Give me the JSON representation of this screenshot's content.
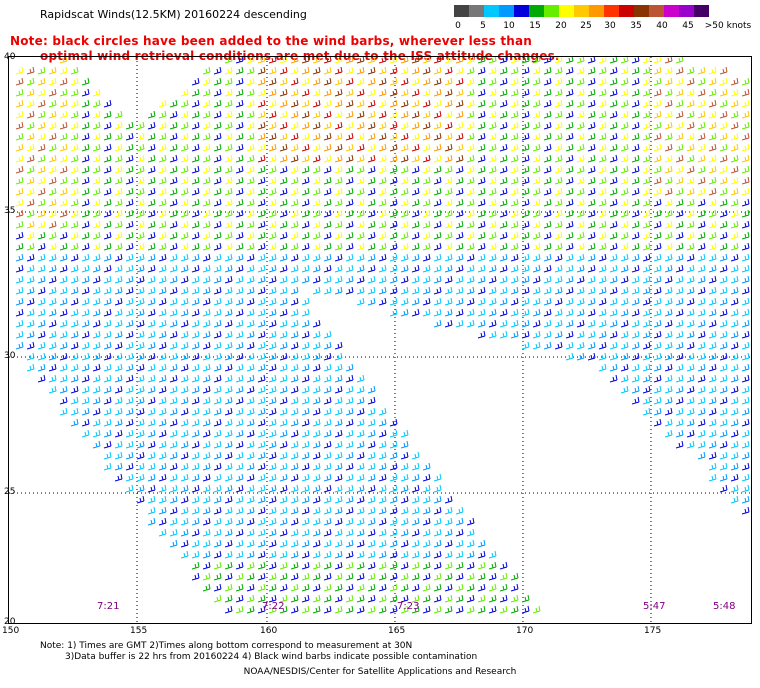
{
  "title": "Rapidscat Winds(12.5KM) 20160224 descending",
  "note": {
    "line1": "Note: black circles have been added to the wind barbs, wherever less than",
    "line2": "optimal wind retrieval conditions are met due to the ISS attitude changes."
  },
  "colorbar": {
    "colors": [
      "#444444",
      "#777777",
      "#00c8ff",
      "#0099ff",
      "#0000dd",
      "#00aa00",
      "#66ee00",
      "#ffff00",
      "#ffc800",
      "#ff9900",
      "#ff3300",
      "#cc0000",
      "#883300",
      "#bb5533",
      "#cc00cc",
      "#9900cc",
      "#440066"
    ],
    "labels": [
      "0",
      "5",
      "10",
      "15",
      "20",
      "25",
      "30",
      "35",
      "40",
      "45",
      ">50 knots"
    ]
  },
  "axes": {
    "lat_labels": [
      "40",
      "35",
      "30",
      "25",
      "20"
    ],
    "lon_labels": [
      "150",
      "155",
      "160",
      "165",
      "170",
      "175"
    ]
  },
  "times": [
    "7:21",
    "7:22",
    "7:23",
    "5:47",
    "5:48"
  ],
  "footnote": {
    "line1": "Note: 1) Times are GMT 2)Times along bottom correspond to measurement at 30N",
    "line2": "3)Data buffer is 22 hrs from 20160224 4) Black wind barbs indicate possible contamination"
  },
  "credit": "NOAA/NESDIS/Center for Satellite Applications and Research"
}
